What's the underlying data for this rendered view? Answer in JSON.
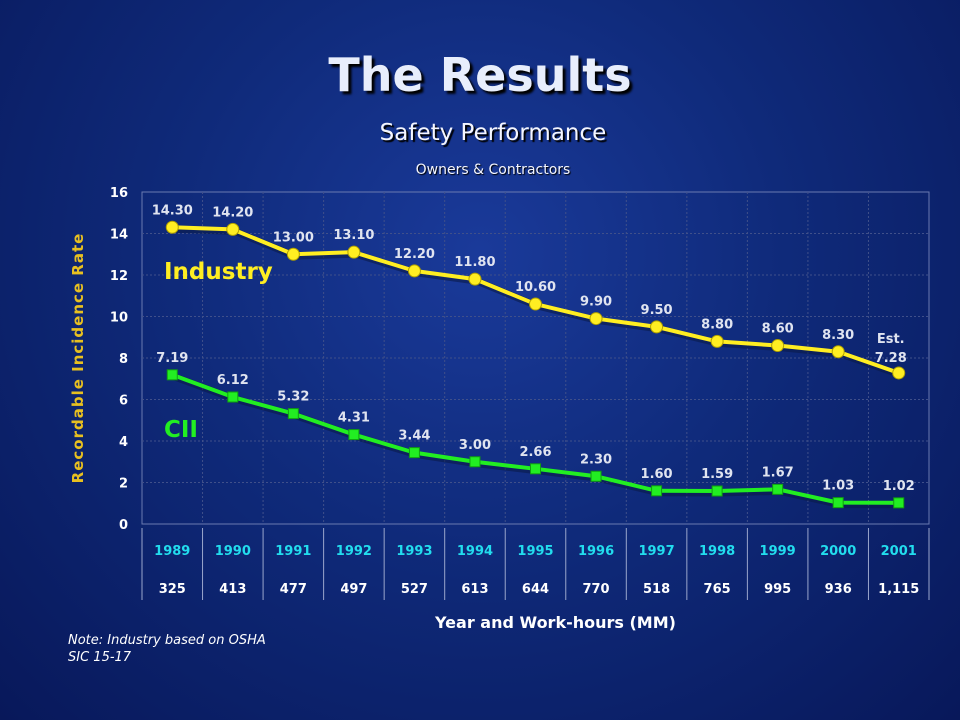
{
  "slide": {
    "title": "The Results",
    "subtitle": "Safety Performance",
    "subsubtitle": "Owners & Contractors",
    "note_line1": "Note: Industry based on OSHA",
    "note_line2": "SIC 15-17"
  },
  "chart_data": {
    "type": "line",
    "ylabel": "Recordable Incidence Rate",
    "xlabel": "Year and Work-hours (MM)",
    "ylim": [
      0,
      16
    ],
    "yticks": [
      0,
      2,
      4,
      6,
      8,
      10,
      12,
      14,
      16
    ],
    "grid": true,
    "categories": [
      "1989",
      "1990",
      "1991",
      "1992",
      "1993",
      "1994",
      "1995",
      "1996",
      "1997",
      "1998",
      "1999",
      "2000",
      "2001"
    ],
    "workhours": [
      "325",
      "413",
      "477",
      "497",
      "527",
      "613",
      "644",
      "770",
      "518",
      "765",
      "995",
      "936",
      "1,115"
    ],
    "series": [
      {
        "name": "Industry",
        "color": "#ffee22",
        "values": [
          14.3,
          14.2,
          13.0,
          13.1,
          12.2,
          11.8,
          10.6,
          9.9,
          9.5,
          8.8,
          8.6,
          8.3,
          7.28
        ],
        "labels": [
          "14.30",
          "14.20",
          "13.00",
          "13.10",
          "12.20",
          "11.80",
          "10.60",
          "9.90",
          "9.50",
          "8.80",
          "8.60",
          "8.30",
          "7.28"
        ],
        "last_prefix": "Est."
      },
      {
        "name": "CII",
        "color": "#22ee22",
        "values": [
          7.19,
          6.12,
          5.32,
          4.31,
          3.44,
          3.0,
          2.66,
          2.3,
          1.6,
          1.59,
          1.67,
          1.03,
          1.02
        ],
        "labels": [
          "7.19",
          "6.12",
          "5.32",
          "4.31",
          "3.44",
          "3.00",
          "2.66",
          "2.30",
          "1.60",
          "1.59",
          "1.67",
          "1.03",
          "1.02"
        ]
      }
    ]
  }
}
